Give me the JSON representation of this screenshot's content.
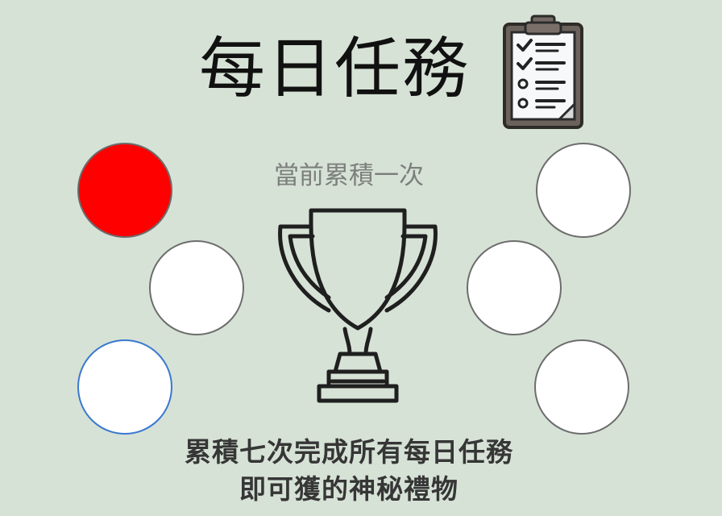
{
  "header": {
    "title": "每日任務",
    "icon": "clipboard-checklist-icon"
  },
  "progress": {
    "current_text": "當前累積一次",
    "completed": 1,
    "total": 6,
    "circles": [
      {
        "state": "completed",
        "color": "#ff0000"
      },
      {
        "state": "empty",
        "color": "#ffffff"
      },
      {
        "state": "focused",
        "color": "#ffffff"
      },
      {
        "state": "empty",
        "color": "#ffffff"
      },
      {
        "state": "empty",
        "color": "#ffffff"
      },
      {
        "state": "empty",
        "color": "#ffffff"
      }
    ]
  },
  "trophy": {
    "icon": "trophy-icon"
  },
  "reward": {
    "line1": "累積七次完成所有每日任務",
    "line2": "即可獲的神秘禮物"
  },
  "colors": {
    "background": "#d6e2d6",
    "completed": "#ff0000",
    "focus_border": "#3a78d0"
  }
}
